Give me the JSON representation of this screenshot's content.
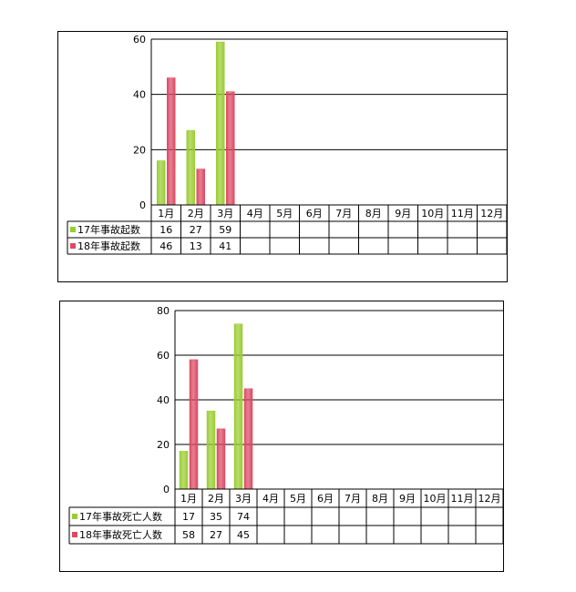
{
  "colors": {
    "series17": "#9acd32",
    "series18": "#dc4a63"
  },
  "chart_data": [
    {
      "type": "bar",
      "categories": [
        "1月",
        "2月",
        "3月",
        "4月",
        "5月",
        "6月",
        "7月",
        "8月",
        "9月",
        "10月",
        "11月",
        "12月"
      ],
      "series": [
        {
          "name": "17年事故起数",
          "values": [
            16,
            27,
            59,
            null,
            null,
            null,
            null,
            null,
            null,
            null,
            null,
            null
          ]
        },
        {
          "name": "18年事故起数",
          "values": [
            46,
            13,
            41,
            null,
            null,
            null,
            null,
            null,
            null,
            null,
            null,
            null
          ]
        }
      ],
      "ylim": [
        0,
        60
      ],
      "yticks": [
        0,
        20,
        40,
        60
      ],
      "grid": true,
      "legend": "data-table-left"
    },
    {
      "type": "bar",
      "categories": [
        "1月",
        "2月",
        "3月",
        "4月",
        "5月",
        "6月",
        "7月",
        "8月",
        "9月",
        "10月",
        "11月",
        "12月"
      ],
      "series": [
        {
          "name": "17年事故死亡人数",
          "values": [
            17,
            35,
            74,
            null,
            null,
            null,
            null,
            null,
            null,
            null,
            null,
            null
          ]
        },
        {
          "name": "18年事故死亡人数",
          "values": [
            58,
            27,
            45,
            null,
            null,
            null,
            null,
            null,
            null,
            null,
            null,
            null
          ]
        }
      ],
      "ylim": [
        0,
        80
      ],
      "yticks": [
        0,
        20,
        40,
        60,
        80
      ],
      "grid": true,
      "legend": "data-table-left"
    }
  ]
}
